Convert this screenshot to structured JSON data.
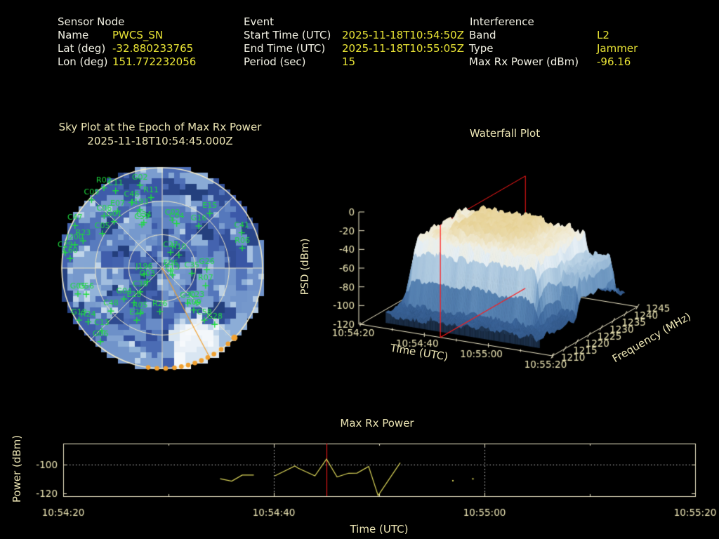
{
  "header": {
    "sensor": {
      "title": "Sensor Node",
      "name_label": "Name",
      "name": "PWCS_SN",
      "lat_label": "Lat (deg)",
      "lat": "-32.880233765",
      "lon_label": "Lon (deg)",
      "lon": "151.772232056"
    },
    "event": {
      "title": "Event",
      "start_label": "Start Time (UTC)",
      "start": "2025-11-18T10:54:50Z",
      "end_label": "End Time (UTC)",
      "end": "2025-11-18T10:55:05Z",
      "period_label": "Period (sec)",
      "period": "15"
    },
    "interference": {
      "title": "Interference",
      "band_label": "Band",
      "band": "L2",
      "type_label": "Type",
      "type": "Jammer",
      "maxrx_label": "Max Rx Power (dBm)",
      "maxrx": "-96.16"
    }
  },
  "colors": {
    "background": "#000000",
    "label_text": "#f2f1e4",
    "value_text": "#e9e435",
    "plot_text": "#ece5b4",
    "grid": "#efe8c8",
    "sat_green": "#1ddb3f",
    "orange": "#f0a030",
    "epoch_red": "#ff1a1a",
    "series_yellow": "#ddd75a"
  },
  "chart_data": [
    {
      "type": "heatmap",
      "name": "sky_plot",
      "title": "Sky Plot at the Epoch of Max Rx Power",
      "subtitle": "2025-11-18T10:54:45.000Z",
      "projection": "polar",
      "elevation_rings_deg": [
        0,
        30,
        60
      ],
      "azimuth_spokes_deg": [
        0,
        45,
        90,
        135,
        180,
        225,
        270,
        315
      ],
      "interference_azimuth_deg": 152,
      "horizon_track_azimuths_deg": [
        134,
        139,
        144,
        149,
        153,
        157,
        161,
        165,
        169,
        173,
        178,
        183,
        188
      ],
      "seed": 11,
      "palette": [
        [
          0,
          "#16295e"
        ],
        [
          0.18,
          "#24407e"
        ],
        [
          0.34,
          "#3b58a8"
        ],
        [
          0.5,
          "#5b7fc0"
        ],
        [
          0.64,
          "#8fb0d8"
        ],
        [
          0.78,
          "#bcd2e8"
        ],
        [
          0.88,
          "#dce8f3"
        ],
        [
          1,
          "#f6f9fc"
        ]
      ],
      "bright_regions": [
        {
          "az": [
            142,
            173
          ],
          "el": [
            0,
            36
          ],
          "v": 0.85
        },
        {
          "az": [
            133,
            143
          ],
          "el": [
            0,
            22
          ],
          "v": 0.66
        },
        {
          "az": [
            246,
            270
          ],
          "el": [
            5,
            42
          ],
          "v": 0.55
        },
        {
          "az": [
            300,
            346
          ],
          "el": [
            42,
            70
          ],
          "v": 0.5
        },
        {
          "az": [
            80,
            135
          ],
          "el": [
            62,
            88
          ],
          "v": 0.5
        },
        {
          "az": [
            350,
            360
          ],
          "el": [
            30,
            55
          ],
          "v": 0.45
        },
        {
          "az": [
            0,
            20
          ],
          "el": [
            30,
            55
          ],
          "v": 0.45
        },
        {
          "az": [
            192,
            218
          ],
          "el": [
            0,
            18
          ],
          "v": 0.5
        }
      ],
      "satellites": [
        [
          "G02",
          345,
          13
        ],
        [
          "R02",
          324,
          1
        ],
        [
          "C11",
          329,
          9
        ],
        [
          "C09",
          314,
          2
        ],
        [
          "R11",
          351,
          26
        ],
        [
          "C46",
          335,
          25
        ],
        [
          "E07",
          322,
          25
        ],
        [
          "J193",
          339,
          34
        ],
        [
          "C06",
          312,
          20
        ],
        [
          "G01",
          314,
          30
        ],
        [
          "C47",
          296,
          3
        ],
        [
          "C05",
          300,
          28
        ],
        [
          "C34",
          338,
          46
        ],
        [
          "C59",
          335,
          47
        ],
        [
          "C02",
          12,
          46
        ],
        [
          "C04",
          18,
          48
        ],
        [
          "R23",
          289,
          15
        ],
        [
          "J200",
          285,
          9
        ],
        [
          "C29",
          279,
          2
        ],
        [
          "C60",
          276,
          7
        ],
        [
          "C27",
          28,
          74
        ],
        [
          "R10",
          52,
          71
        ],
        [
          "E06",
          108,
          82
        ],
        [
          "E13",
          124,
          79
        ],
        [
          "C35",
          100,
          63
        ],
        [
          "G26",
          92,
          50
        ],
        [
          "E15",
          41,
          25
        ],
        [
          "G16",
          41,
          40
        ],
        [
          "C41",
          66,
          12
        ],
        [
          "R06",
          76,
          16
        ],
        [
          "J196",
          251,
          73
        ],
        [
          "G03",
          228,
          72
        ],
        [
          "C38",
          223,
          61
        ],
        [
          "G05",
          253,
          11
        ],
        [
          "G56",
          251,
          18
        ],
        [
          "G04",
          231,
          46
        ],
        [
          "E28",
          219,
          50
        ],
        [
          "C48",
          230,
          30
        ],
        [
          "R05",
          206,
          45
        ],
        [
          "E26",
          206,
          38
        ],
        [
          "R26",
          183,
          51
        ],
        [
          "G19",
          238,
          2
        ],
        [
          "R24",
          234,
          8
        ],
        [
          "C13",
          224,
          12
        ],
        [
          "G06",
          220,
          4
        ],
        [
          "R07",
          112,
          48
        ],
        [
          "G30",
          144,
          51
        ],
        [
          "C23",
          135,
          46
        ],
        [
          "R09",
          143,
          43
        ],
        [
          "C58",
          141,
          30
        ],
        [
          "G28",
          137,
          21
        ]
      ]
    },
    {
      "type": "heatmap",
      "name": "waterfall_3d_surface",
      "title": "Waterfall Plot",
      "xlabel": "Time (UTC)",
      "ylabel": "Frequency (MHz)",
      "zlabel": "PSD (dBm)",
      "time_tick_labels": [
        "10:54:20",
        "10:54:40",
        "10:55:00",
        "10:55:20"
      ],
      "time_tick_sec": [
        0,
        20,
        40,
        60
      ],
      "time_minor_tick_sec": [
        10,
        30,
        50
      ],
      "freq_ticks": [
        1210,
        1215,
        1220,
        1225,
        1230,
        1235,
        1240,
        1245
      ],
      "psd_ticks": [
        0,
        -20,
        -40,
        -60,
        -80,
        -100,
        -120
      ],
      "time_range_sec": [
        0,
        60
      ],
      "freq_range_mhz": [
        1210,
        1245
      ],
      "psd_range_dbm": [
        -120,
        0
      ],
      "epoch_offset_sec": 25,
      "seed": 7,
      "signal": {
        "time_span_sec": [
          8,
          52
        ],
        "freq_span_mhz": [
          1215,
          1240
        ],
        "plateau_psd": -40,
        "core_boost_psd": 14,
        "noise_floor_psd": -108,
        "tail": {
          "time_span_sec": [
            46,
            57
          ],
          "freq_span_mhz": [
            1224,
            1243
          ],
          "psd": -66
        }
      },
      "surface_palette": [
        [
          0,
          "#2d4f7c"
        ],
        [
          0.15,
          "#3c669c"
        ],
        [
          0.3,
          "#5e8ab8"
        ],
        [
          0.45,
          "#8fb2d2"
        ],
        [
          0.6,
          "#c2d8e8"
        ],
        [
          0.72,
          "#e6eff5"
        ],
        [
          0.82,
          "#f2efe0"
        ],
        [
          0.92,
          "#ecdcae"
        ],
        [
          1,
          "#e6d193"
        ]
      ]
    },
    {
      "type": "line",
      "name": "max_rx_power",
      "title": "Max Rx Power",
      "xlabel": "Time (UTC)",
      "ylabel": "Power (dBm)",
      "x_tick_labels": [
        "10:54:20",
        "10:54:40",
        "10:55:00",
        "10:55:20"
      ],
      "x_tick_sec": [
        0,
        20,
        40,
        60
      ],
      "x_minor_tick_sec": [
        10,
        30,
        50
      ],
      "y_ticks": [
        -100,
        -120
      ],
      "ylim": [
        -122,
        -85.4
      ],
      "x_range_sec": [
        0,
        60
      ],
      "dotted_gridline_y": -100,
      "dashed_gridline_x_sec": [
        20,
        40
      ],
      "epoch_offset_sec": 25,
      "segments": [
        [
          [
            14.9,
            -109.8
          ],
          [
            16,
            -111.5
          ],
          [
            17,
            -107.3
          ],
          [
            18.1,
            -107.3
          ]
        ],
        [
          [
            20.1,
            -107.8
          ],
          [
            22,
            -101
          ],
          [
            22.3,
            -102.4
          ],
          [
            23.9,
            -107.8
          ],
          [
            25,
            -96.16
          ],
          [
            26,
            -108.6
          ],
          [
            27.1,
            -106
          ],
          [
            27.9,
            -105.9
          ],
          [
            29,
            -101.3
          ],
          [
            29.9,
            -121.5
          ],
          [
            32,
            -98.7
          ]
        ]
      ],
      "isolated_points": [
        [
          37,
          -111.2
        ],
        [
          38.9,
          -109.9
        ]
      ]
    }
  ]
}
